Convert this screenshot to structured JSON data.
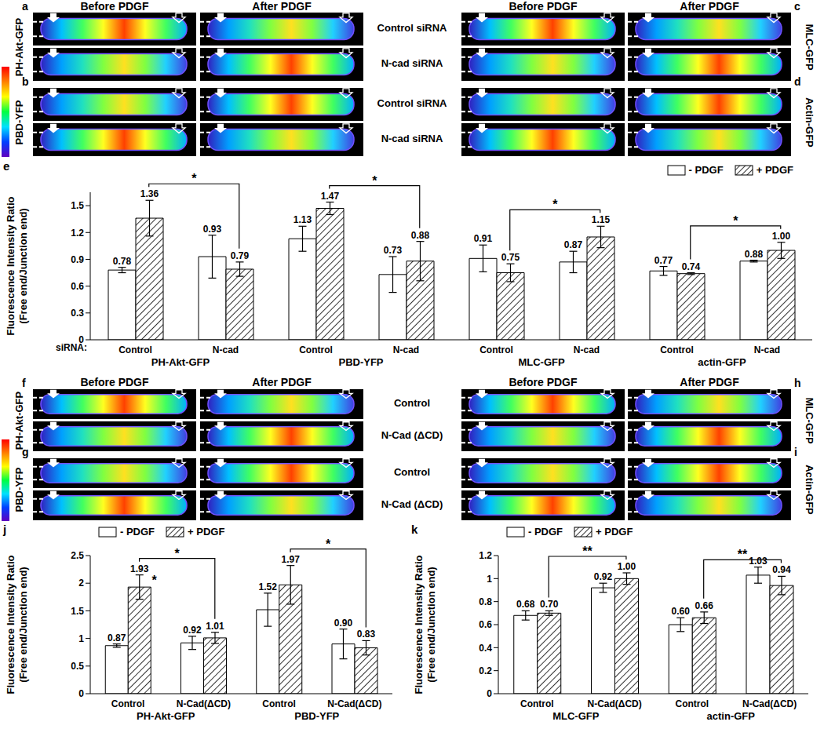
{
  "image_sections": [
    {
      "columns": [
        "Before PDGF",
        "After PDGF"
      ],
      "rows": [
        "Control siRNA",
        "N-cad siRNA"
      ],
      "panel_rows": [
        {
          "left": {
            "label": "a",
            "marker": "PH-Akt-GFP"
          },
          "right": {
            "label": "c",
            "marker": "MLC-GFP"
          }
        },
        {
          "left": {
            "label": "b",
            "marker": "PBD-YFP"
          },
          "right": {
            "label": "d",
            "marker": "Actin-GFP"
          }
        }
      ]
    },
    {
      "columns": [
        "Before PDGF",
        "After PDGF"
      ],
      "rows": [
        "Control",
        "N-Cad (ΔCD)"
      ],
      "panel_rows": [
        {
          "left": {
            "label": "f",
            "marker": "PH-Akt-GFP"
          },
          "right": {
            "label": "h",
            "marker": "MLC-GFP"
          }
        },
        {
          "left": {
            "label": "g",
            "marker": "PBD-YFP"
          },
          "right": {
            "label": "i",
            "marker": "Actin-GFP"
          }
        }
      ]
    }
  ],
  "chart_data": [
    {
      "label": "e",
      "type": "bar",
      "y_label": "Fluorescence Intensity Ratio\n(Free end/Junction end)",
      "x_label": "siRNA:",
      "categories": [
        "Control",
        "N-cad",
        "Control",
        "N-cad",
        "Control",
        "N-cad",
        "Control",
        "N-cad"
      ],
      "group_labels": [
        "PH-Akt-GFP",
        "PBD-YFP",
        "MLC-GFP",
        "actin-GFP"
      ],
      "series": [
        {
          "name": "- PDGF",
          "color": "#ffffff",
          "values": [
            0.78,
            0.93,
            1.13,
            0.73,
            0.91,
            0.87,
            0.77,
            0.88
          ],
          "errors": [
            0.03,
            0.24,
            0.14,
            0.2,
            0.15,
            0.12,
            0.05,
            0.01
          ],
          "value_labels": [
            "0.78",
            "0.93",
            "1.13",
            "0.73",
            "0.91",
            "0.87",
            "0.77",
            "0.88"
          ]
        },
        {
          "name": "+ PDGF",
          "color": "#000000",
          "values": [
            1.36,
            0.79,
            1.47,
            0.88,
            0.75,
            1.15,
            0.74,
            1.0
          ],
          "errors": [
            0.2,
            0.08,
            0.07,
            0.22,
            0.1,
            0.12,
            0.01,
            0.09
          ],
          "value_labels": [
            "1.36",
            "0.79",
            "1.47",
            "0.88",
            "0.75",
            "1.15",
            "0.74",
            "1.00"
          ]
        }
      ],
      "ylim": [
        0,
        1.65
      ],
      "yticks": [
        0,
        0.3,
        0.6,
        0.9,
        1.2,
        1.5
      ],
      "legend": "top-right",
      "data_labels": true,
      "significance": [
        {
          "from": 0,
          "to": 1,
          "series": 1,
          "label": "*"
        },
        {
          "from": 2,
          "to": 3,
          "series": 1,
          "label": "*"
        },
        {
          "from": 4,
          "to": 5,
          "series": 1,
          "label": "*"
        },
        {
          "from": 6,
          "to": 7,
          "series": 1,
          "label": "*"
        }
      ],
      "annotations": []
    },
    {
      "label": "j",
      "type": "bar",
      "y_label": "Fluorescence Intensity Ratio\n(Free end/Junction end)",
      "categories": [
        "Control",
        "N-Cad(ΔCD)",
        "Control",
        "N-Cad(ΔCD)"
      ],
      "group_labels": [
        "PH-Akt-GFP",
        "PBD-YFP"
      ],
      "series": [
        {
          "name": "- PDGF",
          "color": "#ffffff",
          "values": [
            0.87,
            0.92,
            1.52,
            0.9
          ],
          "errors": [
            0.03,
            0.12,
            0.3,
            0.27
          ],
          "value_labels": [
            "0.87",
            "0.92",
            "1.52",
            "0.90"
          ]
        },
        {
          "name": "+ PDGF",
          "color": "#000000",
          "values": [
            1.93,
            1.01,
            1.97,
            0.83
          ],
          "errors": [
            0.22,
            0.1,
            0.35,
            0.13
          ],
          "value_labels": [
            "1.93",
            "1.01",
            "1.97",
            "0.83"
          ]
        }
      ],
      "ylim": [
        0,
        2.5
      ],
      "yticks": [
        0,
        0.5,
        1,
        1.5,
        2,
        2.5
      ],
      "legend": "top-left",
      "data_labels": true,
      "significance": [
        {
          "from": 0,
          "to": 1,
          "series": 1,
          "label": "*"
        },
        {
          "from": 2,
          "to": 3,
          "series": 1,
          "label": "*"
        }
      ],
      "annotations": [
        {
          "category": 0,
          "series": 1,
          "text": "*"
        }
      ]
    },
    {
      "label": "k",
      "type": "bar",
      "y_label": "Fluorescence Intensity Ratio\n(Free end/Junction end)",
      "categories": [
        "Control",
        "N-Cad(ΔCD)",
        "Control",
        "N-Cad(ΔCD)"
      ],
      "group_labels": [
        "MLC-GFP",
        "actin-GFP"
      ],
      "series": [
        {
          "name": "- PDGF",
          "color": "#ffffff",
          "values": [
            0.68,
            0.92,
            0.6,
            1.03
          ],
          "errors": [
            0.04,
            0.04,
            0.06,
            0.07
          ],
          "value_labels": [
            "0.68",
            "0.92",
            "0.60",
            "1.03"
          ]
        },
        {
          "name": "+ PDGF",
          "color": "#000000",
          "values": [
            0.7,
            1.0,
            0.66,
            0.94
          ],
          "errors": [
            0.02,
            0.05,
            0.05,
            0.08
          ],
          "value_labels": [
            "0.70",
            "1.00",
            "0.66",
            "0.94"
          ]
        }
      ],
      "ylim": [
        0,
        1.2
      ],
      "yticks": [
        0,
        0.2,
        0.4,
        0.6,
        0.8,
        1,
        1.2
      ],
      "legend": "top-left",
      "data_labels": true,
      "significance": [
        {
          "from": 0,
          "to": 1,
          "series": 1,
          "label": "**"
        },
        {
          "from": 2,
          "to": 3,
          "series": 1,
          "label": "**"
        }
      ],
      "annotations": []
    }
  ]
}
